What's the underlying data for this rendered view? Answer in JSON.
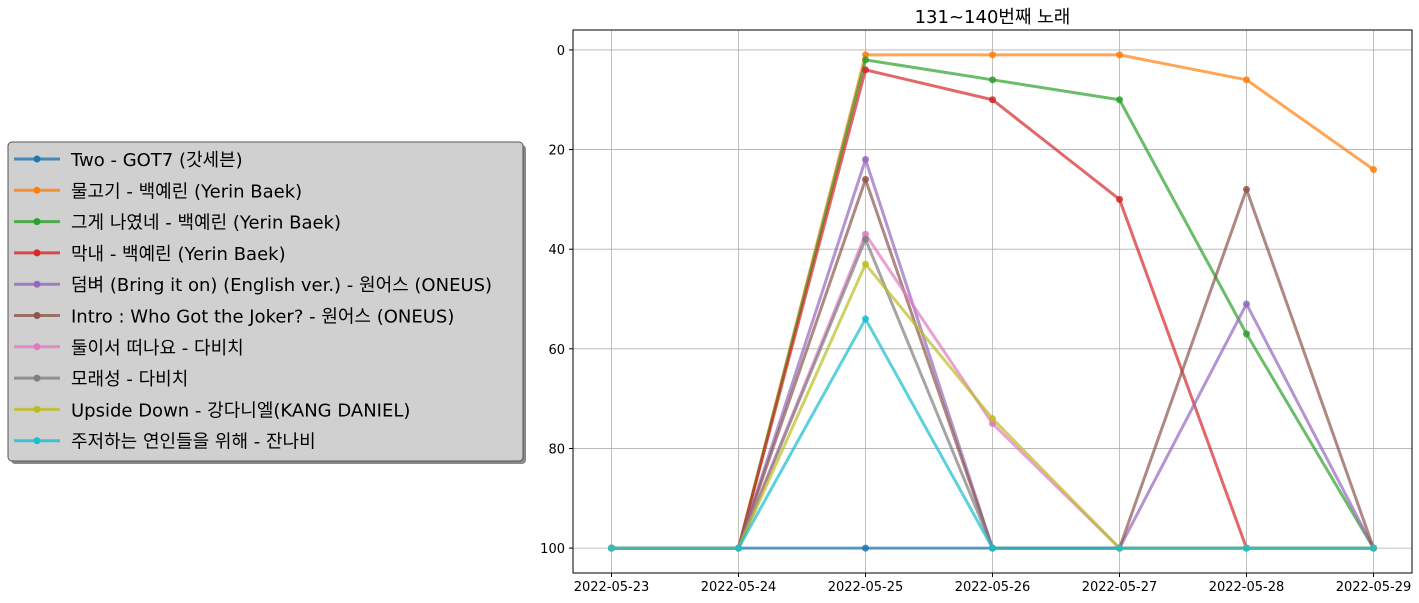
{
  "chart_data": {
    "type": "line",
    "title": "131~140번째 노래",
    "xlabel": "",
    "ylabel": "",
    "x": [
      "2022-05-23",
      "2022-05-24",
      "2022-05-25",
      "2022-05-26",
      "2022-05-27",
      "2022-05-28",
      "2022-05-29"
    ],
    "ylim": [
      105,
      -4
    ],
    "y_inverted": true,
    "yticks": [
      0,
      20,
      40,
      60,
      80,
      100
    ],
    "grid": true,
    "legend_position": "left",
    "series": [
      {
        "name": "Two - GOT7 (갓세븐)",
        "color": "#1f77b4",
        "values": [
          100,
          100,
          100,
          100,
          100,
          100,
          100
        ]
      },
      {
        "name": "물고기 - 백예린 (Yerin Baek)",
        "color": "#ff7f0e",
        "values": [
          100,
          100,
          1,
          1,
          1,
          6,
          24
        ]
      },
      {
        "name": "그게 나였네 - 백예린 (Yerin Baek)",
        "color": "#2ca02c",
        "values": [
          100,
          100,
          2,
          6,
          10,
          57,
          100
        ]
      },
      {
        "name": "막내 - 백예린 (Yerin Baek)",
        "color": "#d62728",
        "values": [
          100,
          100,
          4,
          10,
          30,
          100,
          100
        ]
      },
      {
        "name": "덤벼 (Bring it on) (English ver.) - 원어스 (ONEUS)",
        "color": "#9467bd",
        "values": [
          100,
          100,
          22,
          100,
          100,
          51,
          100
        ]
      },
      {
        "name": "Intro : Who Got the Joker? - 원어스 (ONEUS)",
        "color": "#8c564b",
        "values": [
          100,
          100,
          26,
          100,
          100,
          28,
          100
        ]
      },
      {
        "name": "둘이서 떠나요 - 다비치",
        "color": "#e377c2",
        "values": [
          100,
          100,
          37,
          75,
          100,
          100,
          100
        ]
      },
      {
        "name": "모래성 - 다비치",
        "color": "#7f7f7f",
        "values": [
          100,
          100,
          38,
          100,
          100,
          100,
          100
        ]
      },
      {
        "name": "Upside Down - 강다니엘(KANG DANIEL)",
        "color": "#bcbd22",
        "values": [
          100,
          100,
          43,
          74,
          100,
          100,
          100
        ]
      },
      {
        "name": "주저하는 연인들을 위해 - 잔나비",
        "color": "#17becf",
        "values": [
          100,
          100,
          54,
          100,
          100,
          100,
          100
        ]
      }
    ]
  }
}
